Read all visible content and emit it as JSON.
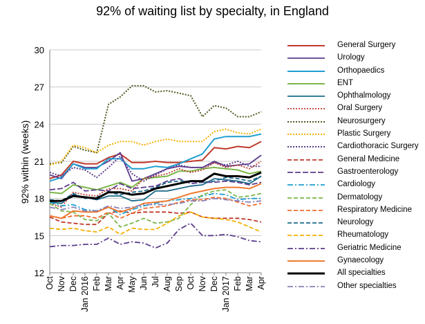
{
  "chart_data": {
    "type": "line",
    "title": "92% of waiting list by specialty, in England",
    "xlabel": "",
    "ylabel": "92% within (weeks)",
    "ylim": [
      12,
      30
    ],
    "yticks": [
      12,
      15,
      18,
      21,
      24,
      27,
      30
    ],
    "grid": "horizontal",
    "legend_position": "right",
    "x": [
      "Oct",
      "Nov",
      "Dec",
      "Jan 2016",
      "Feb",
      "Mar",
      "Apr",
      "May",
      "Jun",
      "Jul",
      "Aug",
      "Sep",
      "Oct",
      "Nov",
      "Dec",
      "Jan 2017",
      "Feb",
      "Mar",
      "Apr"
    ],
    "series": [
      {
        "name": "General Surgery",
        "color": "#c0392b",
        "width": 2,
        "dash": "",
        "values": [
          19.6,
          19.9,
          21.0,
          20.8,
          20.8,
          21.3,
          21.6,
          20.9,
          20.9,
          21.0,
          20.9,
          20.9,
          21.0,
          21.1,
          22.1,
          22.0,
          22.2,
          22.1,
          22.6
        ]
      },
      {
        "name": "Urology",
        "color": "#5b3b8c",
        "width": 1.8,
        "dash": "",
        "values": [
          19.9,
          19.6,
          20.8,
          20.5,
          20.5,
          21.0,
          21.7,
          19.4,
          19.6,
          20.0,
          20.4,
          20.6,
          20.5,
          20.5,
          21.0,
          20.6,
          20.7,
          20.8,
          21.5
        ]
      },
      {
        "name": "Orthopaedics",
        "color": "#1f9ed1",
        "width": 2,
        "dash": "",
        "values": [
          19.4,
          19.7,
          20.8,
          20.4,
          20.4,
          21.2,
          21.2,
          20.4,
          20.4,
          20.6,
          20.5,
          20.8,
          21.2,
          21.6,
          22.8,
          23.0,
          23.0,
          23.0,
          23.2
        ]
      },
      {
        "name": "ENT",
        "color": "#7ab648",
        "width": 2,
        "dash": "",
        "values": [
          18.5,
          18.4,
          19.1,
          18.9,
          18.7,
          19.0,
          19.3,
          18.9,
          19.6,
          19.7,
          19.8,
          20.2,
          20.2,
          20.4,
          20.5,
          20.4,
          20.3,
          20.0,
          20.2
        ]
      },
      {
        "name": "Ophthalmology",
        "color": "#1b6a8a",
        "width": 1.8,
        "dash": "",
        "values": [
          17.7,
          17.6,
          18.3,
          18.1,
          17.9,
          18.2,
          18.2,
          17.8,
          17.9,
          18.6,
          18.6,
          18.8,
          19.0,
          19.1,
          19.6,
          19.5,
          19.4,
          19.2,
          19.8
        ]
      },
      {
        "name": "Oral Surgery",
        "color": "#c0392b",
        "width": 1.8,
        "dash": "2,2",
        "values": [
          17.6,
          17.3,
          18.5,
          18.3,
          18.2,
          18.8,
          18.8,
          18.6,
          19.6,
          19.8,
          20.0,
          20.4,
          20.1,
          20.3,
          20.9,
          20.5,
          20.7,
          20.4,
          21.0
        ]
      },
      {
        "name": "Neurosurgery",
        "color": "#4a5a1e",
        "width": 2,
        "dash": "2,2",
        "values": [
          20.8,
          20.9,
          22.2,
          21.9,
          21.7,
          25.6,
          26.2,
          27.1,
          27.1,
          26.6,
          26.7,
          26.5,
          26.3,
          24.6,
          25.5,
          25.3,
          24.6,
          24.6,
          25.0
        ]
      },
      {
        "name": "Plastic Surgery",
        "color": "#f4b000",
        "width": 2,
        "dash": "2,2",
        "values": [
          20.7,
          21.0,
          22.3,
          22.1,
          21.7,
          22.3,
          22.6,
          22.6,
          22.3,
          22.6,
          22.8,
          22.6,
          22.6,
          22.6,
          23.4,
          23.6,
          23.3,
          23.2,
          23.6
        ]
      },
      {
        "name": "Cardiothoracic Surgery",
        "color": "#5b3b8c",
        "width": 2,
        "dash": "2,2",
        "values": [
          20.1,
          19.8,
          20.5,
          20.3,
          19.7,
          20.5,
          21.4,
          20.0,
          19.4,
          19.9,
          20.4,
          20.7,
          20.5,
          20.5,
          20.9,
          20.7,
          21.0,
          20.6,
          20.6
        ]
      },
      {
        "name": "General Medicine",
        "color": "#c0392b",
        "width": 1.8,
        "dash": "6,3",
        "values": [
          16.5,
          16.1,
          16.0,
          15.9,
          15.9,
          16.8,
          17.0,
          16.8,
          16.9,
          16.9,
          16.9,
          16.8,
          16.9,
          16.5,
          16.4,
          16.4,
          16.4,
          16.3,
          16.1
        ]
      },
      {
        "name": "Gastroenterology",
        "color": "#5b3b8c",
        "width": 1.8,
        "dash": "8,3",
        "values": [
          18.7,
          18.8,
          19.3,
          18.6,
          18.7,
          18.6,
          19.2,
          18.8,
          18.9,
          19.0,
          19.4,
          19.6,
          19.2,
          19.3,
          19.3,
          19.4,
          19.3,
          19.1,
          19.3
        ]
      },
      {
        "name": "Cardiology",
        "color": "#1f9ed1",
        "width": 1.8,
        "dash": "8,3,2,3",
        "values": [
          17.7,
          17.4,
          17.5,
          17.1,
          17.0,
          17.3,
          16.7,
          17.1,
          17.4,
          17.6,
          17.8,
          17.9,
          18.0,
          18.2,
          18.4,
          18.3,
          17.9,
          18.0,
          18.0
        ]
      },
      {
        "name": "Dermatology",
        "color": "#7ab648",
        "width": 1.8,
        "dash": "6,3",
        "values": [
          17.6,
          17.0,
          16.9,
          16.3,
          16.2,
          16.8,
          15.7,
          16.0,
          16.4,
          16.0,
          16.1,
          16.4,
          17.5,
          18.3,
          18.6,
          18.7,
          18.1,
          18.2,
          18.4
        ]
      },
      {
        "name": "Respiratory Medicine",
        "color": "#ef6c2f",
        "width": 1.8,
        "dash": "6,3",
        "values": [
          16.6,
          16.4,
          16.6,
          16.6,
          16.4,
          16.9,
          16.4,
          16.8,
          17.2,
          17.3,
          17.4,
          17.7,
          17.9,
          17.9,
          18.1,
          18.0,
          17.7,
          17.4,
          17.6
        ]
      },
      {
        "name": "Neurology",
        "color": "#1b6a8a",
        "width": 1.8,
        "dash": "6,3",
        "values": [
          17.9,
          17.8,
          18.4,
          18.0,
          18.1,
          18.5,
          18.3,
          18.5,
          18.6,
          18.9,
          19.3,
          19.4,
          19.4,
          19.3,
          19.4,
          19.7,
          19.6,
          19.4,
          19.8
        ]
      },
      {
        "name": "Rheumatology",
        "color": "#f4b000",
        "width": 1.8,
        "dash": "6,3",
        "values": [
          15.6,
          15.5,
          15.6,
          15.4,
          15.3,
          15.7,
          15.1,
          15.6,
          15.5,
          15.5,
          16.0,
          16.6,
          16.9,
          16.5,
          16.4,
          16.3,
          16.1,
          15.7,
          15.3
        ]
      },
      {
        "name": "Geriatric Medicine",
        "color": "#5b3b8c",
        "width": 1.8,
        "dash": "8,3,2,3",
        "values": [
          14.1,
          14.2,
          14.2,
          14.3,
          14.3,
          14.8,
          14.3,
          14.5,
          14.4,
          14.0,
          14.4,
          15.5,
          16.0,
          15.0,
          15.0,
          15.1,
          14.9,
          14.6,
          14.5
        ]
      },
      {
        "name": "Gynaecology",
        "color": "#ef7a30",
        "width": 2,
        "dash": "",
        "values": [
          16.6,
          16.4,
          17.0,
          16.9,
          16.9,
          17.3,
          16.9,
          17.2,
          17.6,
          17.7,
          17.8,
          18.1,
          18.4,
          18.6,
          18.8,
          18.9,
          18.9,
          18.8,
          19.2
        ]
      },
      {
        "name": "All specialties",
        "color": "#000000",
        "width": 3,
        "dash": "",
        "values": [
          17.8,
          17.8,
          18.2,
          18.1,
          18.0,
          18.5,
          18.5,
          18.3,
          18.4,
          18.8,
          19.0,
          19.2,
          19.4,
          19.4,
          20.0,
          19.8,
          19.8,
          19.7,
          20.1
        ]
      },
      {
        "name": "Other specialties",
        "color": "#8a80b8",
        "width": 1.8,
        "dash": "8,3,2,3",
        "values": [
          17.3,
          17.1,
          17.3,
          17.0,
          17.0,
          17.4,
          17.2,
          17.3,
          17.5,
          17.5,
          17.5,
          17.6,
          17.8,
          17.8,
          18.0,
          17.9,
          17.8,
          17.7,
          17.8
        ]
      }
    ]
  }
}
